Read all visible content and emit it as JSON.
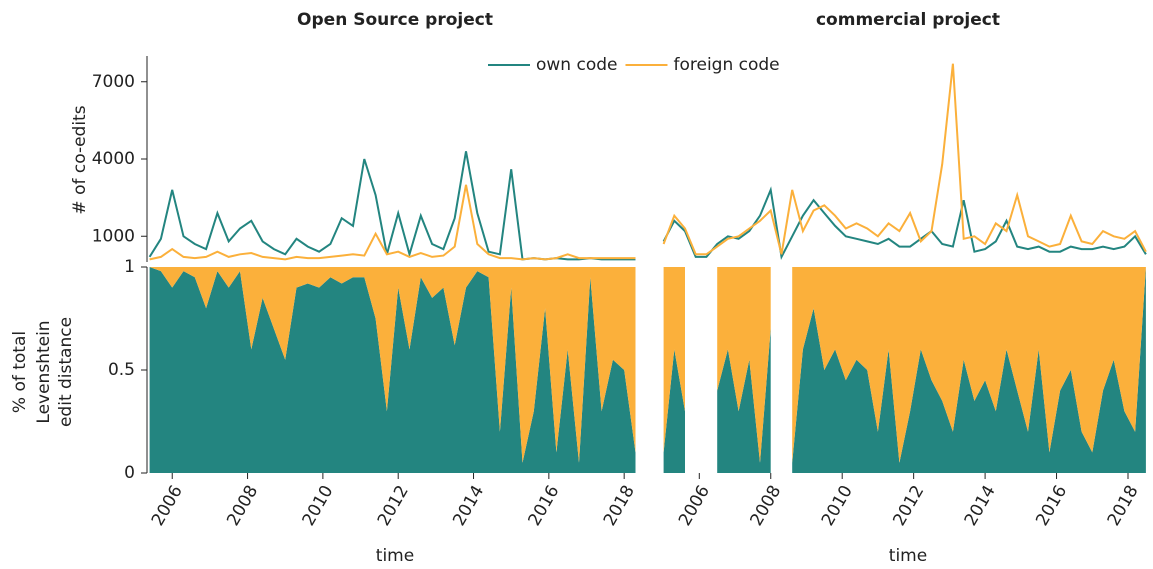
{
  "chart_data": [
    {
      "type": "line",
      "title": "Open Source project",
      "ylabel": "# of co-edits",
      "legend": "top",
      "x": [
        2005.4,
        2005.7,
        2006.0,
        2006.3,
        2006.6,
        2006.9,
        2007.2,
        2007.5,
        2007.8,
        2008.1,
        2008.4,
        2008.7,
        2009.0,
        2009.3,
        2009.6,
        2009.9,
        2010.2,
        2010.5,
        2010.8,
        2011.1,
        2011.4,
        2011.7,
        2012.0,
        2012.3,
        2012.6,
        2012.9,
        2013.2,
        2013.5,
        2013.8,
        2014.1,
        2014.4,
        2014.7,
        2015.0,
        2015.3,
        2015.6,
        2015.9,
        2016.2,
        2016.5,
        2016.8,
        2017.1,
        2017.4,
        2017.7,
        2018.0,
        2018.3
      ],
      "series": [
        {
          "name": "own code",
          "color": "#238580",
          "values": [
            200,
            900,
            2800,
            1000,
            700,
            500,
            1900,
            800,
            1300,
            1600,
            800,
            500,
            300,
            900,
            600,
            400,
            700,
            1700,
            1400,
            4000,
            2600,
            300,
            1900,
            300,
            1800,
            700,
            500,
            1700,
            4300,
            1900,
            400,
            300,
            3600,
            100,
            150,
            100,
            150,
            100,
            100,
            150,
            100,
            100,
            100,
            100
          ]
        },
        {
          "name": "foreign code",
          "color": "#fbb03b",
          "values": [
            100,
            200,
            500,
            200,
            150,
            200,
            400,
            200,
            300,
            350,
            200,
            150,
            100,
            200,
            150,
            150,
            200,
            250,
            300,
            250,
            1100,
            300,
            400,
            200,
            350,
            200,
            250,
            600,
            3000,
            700,
            300,
            150,
            150,
            100,
            150,
            100,
            150,
            300,
            150,
            150,
            150,
            150,
            150,
            150
          ]
        }
      ],
      "xlim": [
        2005.33,
        2018.5
      ],
      "ylim": [
        0,
        8000
      ],
      "yticks": [
        1000,
        4000,
        7000
      ]
    },
    {
      "type": "area",
      "ylabel": [
        "% of total",
        "Levenshtein",
        "edit distance"
      ],
      "xlabel": "time",
      "x": [
        2005.4,
        2005.7,
        2006.0,
        2006.3,
        2006.6,
        2006.9,
        2007.2,
        2007.5,
        2007.8,
        2008.1,
        2008.4,
        2008.7,
        2009.0,
        2009.3,
        2009.6,
        2009.9,
        2010.2,
        2010.5,
        2010.8,
        2011.1,
        2011.4,
        2011.7,
        2012.0,
        2012.3,
        2012.6,
        2012.9,
        2013.2,
        2013.5,
        2013.8,
        2014.1,
        2014.4,
        2014.7,
        2015.0,
        2015.3,
        2015.6,
        2015.9,
        2016.2,
        2016.5,
        2016.8,
        2017.1,
        2017.4,
        2017.7,
        2018.0,
        2018.3
      ],
      "series": [
        {
          "color": "#238580",
          "values": [
            1,
            0.98,
            0.9,
            0.98,
            0.95,
            0.8,
            0.98,
            0.9,
            0.98,
            0.6,
            0.85,
            0.7,
            0.55,
            0.9,
            0.92,
            0.9,
            0.95,
            0.92,
            0.95,
            0.95,
            0.75,
            0.3,
            0.9,
            0.6,
            0.95,
            0.85,
            0.9,
            0.62,
            0.9,
            0.98,
            0.95,
            0.2,
            0.9,
            0.05,
            0.3,
            0.8,
            0.1,
            0.6,
            0.05,
            0.95,
            0.3,
            0.55,
            0.5,
            0.1
          ]
        },
        {
          "color": "#fbb03b",
          "values": [
            0,
            0.02,
            0.1,
            0.02,
            0.05,
            0.2,
            0.02,
            0.1,
            0.02,
            0.4,
            0.15,
            0.3,
            0.45,
            0.1,
            0.08,
            0.1,
            0.05,
            0.08,
            0.05,
            0.05,
            0.25,
            0.7,
            0.1,
            0.4,
            0.05,
            0.15,
            0.1,
            0.38,
            0.1,
            0.02,
            0.05,
            0.8,
            0.1,
            0.95,
            0.7,
            0.2,
            0.9,
            0.4,
            0.95,
            0.05,
            0.7,
            0.45,
            0.5,
            0.9
          ]
        }
      ],
      "xlim": [
        2005.33,
        2018.5
      ],
      "ylim": [
        0,
        1
      ],
      "yticks": [
        0,
        0.5,
        1
      ],
      "xticks": [
        2006,
        2008,
        2010,
        2012,
        2014,
        2016,
        2018
      ]
    },
    {
      "type": "line",
      "title": "commercial project",
      "x": [
        2005.0,
        2005.3,
        2005.6,
        2005.9,
        2006.2,
        2006.5,
        2006.8,
        2007.1,
        2007.4,
        2007.7,
        2008.0,
        2008.3,
        2008.6,
        2008.9,
        2009.2,
        2009.5,
        2009.8,
        2010.1,
        2010.4,
        2010.7,
        2011.0,
        2011.3,
        2011.6,
        2011.9,
        2012.2,
        2012.5,
        2012.8,
        2013.1,
        2013.4,
        2013.7,
        2014.0,
        2014.3,
        2014.6,
        2014.9,
        2015.2,
        2015.5,
        2015.8,
        2016.1,
        2016.4,
        2016.7,
        2017.0,
        2017.3,
        2017.6,
        2017.9,
        2018.2,
        2018.5
      ],
      "series": [
        {
          "color": "#238580",
          "values": [
            800,
            1600,
            1200,
            200,
            200,
            700,
            1000,
            900,
            1200,
            1800,
            2800,
            200,
            1000,
            1800,
            2400,
            1900,
            1400,
            1000,
            900,
            800,
            700,
            900,
            600,
            600,
            900,
            1200,
            700,
            600,
            2400,
            400,
            500,
            800,
            1600,
            600,
            500,
            600,
            400,
            400,
            600,
            500,
            500,
            600,
            500,
            600,
            1000,
            300
          ]
        },
        {
          "color": "#fbb03b",
          "values": [
            700,
            1800,
            1300,
            300,
            300,
            600,
            900,
            1000,
            1300,
            1600,
            2000,
            300,
            2800,
            1200,
            2000,
            2200,
            1800,
            1300,
            1500,
            1300,
            1000,
            1500,
            1200,
            1900,
            800,
            1200,
            3800,
            7700,
            900,
            1000,
            700,
            1500,
            1200,
            2600,
            1000,
            800,
            600,
            700,
            1800,
            800,
            700,
            1200,
            1000,
            900,
            1200,
            400
          ]
        }
      ],
      "xlim": [
        2004.9,
        2018.7
      ],
      "ylim": [
        0,
        8000
      ]
    },
    {
      "type": "area",
      "xlabel": "time",
      "x": [
        2005.0,
        2005.3,
        2005.6,
        2005.9,
        2006.2,
        2006.5,
        2006.8,
        2007.1,
        2007.4,
        2007.7,
        2008.0,
        2008.3,
        2008.6,
        2008.9,
        2009.2,
        2009.5,
        2009.8,
        2010.1,
        2010.4,
        2010.7,
        2011.0,
        2011.3,
        2011.6,
        2011.9,
        2012.2,
        2012.5,
        2012.8,
        2013.1,
        2013.4,
        2013.7,
        2014.0,
        2014.3,
        2014.6,
        2014.9,
        2015.2,
        2015.5,
        2015.8,
        2016.1,
        2016.4,
        2016.7,
        2017.0,
        2017.3,
        2017.6,
        2017.9,
        2018.2,
        2018.5
      ],
      "series": [
        {
          "color": "#238580",
          "values": [
            0.1,
            0.6,
            0.3,
            null,
            null,
            0.4,
            0.6,
            0.3,
            0.55,
            0.05,
            0.7,
            null,
            0.05,
            0.6,
            0.8,
            0.5,
            0.6,
            0.45,
            0.55,
            0.5,
            0.2,
            0.6,
            0.05,
            0.3,
            0.6,
            0.45,
            0.35,
            0.2,
            0.55,
            0.35,
            0.45,
            0.3,
            0.6,
            0.4,
            0.2,
            0.6,
            0.1,
            0.4,
            0.5,
            0.2,
            0.1,
            0.4,
            0.55,
            0.3,
            0.2,
            1
          ]
        },
        {
          "color": "#fbb03b",
          "values": [
            0.9,
            0.4,
            0.7,
            null,
            null,
            0.6,
            0.4,
            0.7,
            0.45,
            0.95,
            0.3,
            null,
            0.95,
            0.4,
            0.2,
            0.5,
            0.4,
            0.55,
            0.45,
            0.5,
            0.8,
            0.4,
            0.95,
            0.7,
            0.4,
            0.55,
            0.65,
            0.8,
            0.45,
            0.65,
            0.55,
            0.7,
            0.4,
            0.6,
            0.8,
            0.4,
            0.9,
            0.6,
            0.5,
            0.8,
            0.9,
            0.6,
            0.45,
            0.7,
            0.8,
            0
          ]
        }
      ],
      "xlim": [
        2004.9,
        2018.7
      ],
      "ylim": [
        0,
        1
      ],
      "xticks": [
        2006,
        2008,
        2010,
        2012,
        2014,
        2016,
        2018
      ]
    }
  ]
}
